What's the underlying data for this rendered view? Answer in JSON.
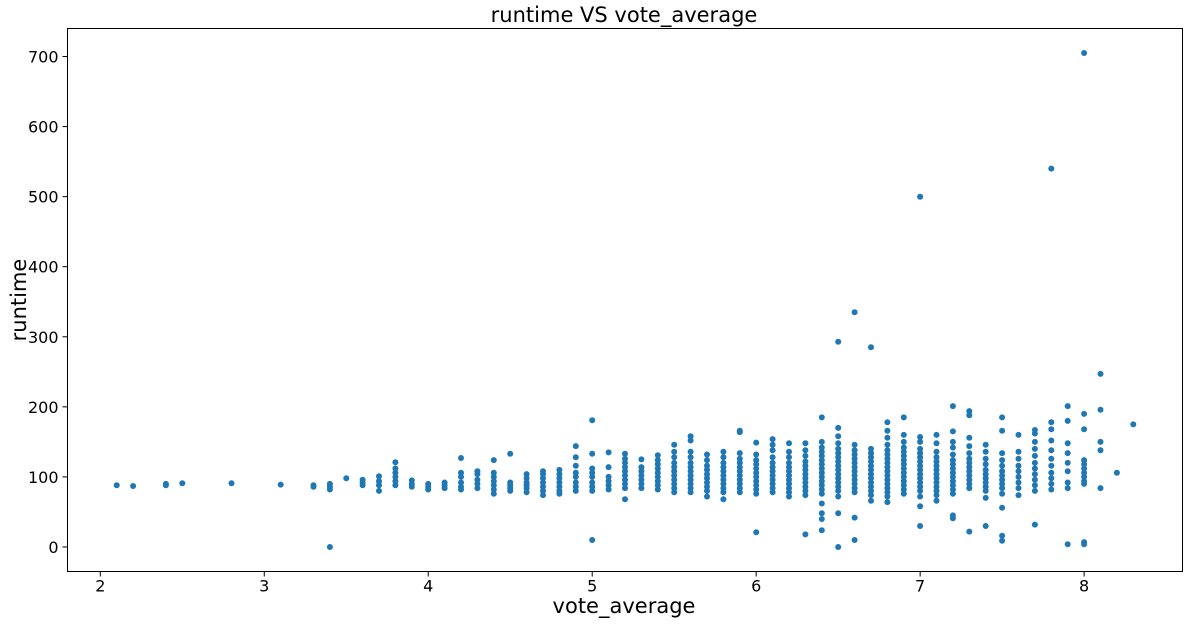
{
  "chart_data": {
    "type": "scatter",
    "title": "runtime VS vote_average",
    "xlabel": "vote_average",
    "ylabel": "runtime",
    "xlim": [
      1.8,
      8.6
    ],
    "ylim": [
      -35,
      740
    ],
    "xticks": [
      2,
      3,
      4,
      5,
      6,
      7,
      8
    ],
    "yticks": [
      0,
      100,
      200,
      300,
      400,
      500,
      600,
      700
    ],
    "grid": false,
    "point_color": "#1f77b4",
    "columns": [
      {
        "x": 2.1,
        "y": [
          88
        ]
      },
      {
        "x": 2.2,
        "y": [
          87
        ]
      },
      {
        "x": 2.4,
        "y": [
          88,
          90
        ]
      },
      {
        "x": 2.5,
        "y": [
          91
        ]
      },
      {
        "x": 2.8,
        "y": [
          91
        ]
      },
      {
        "x": 3.1,
        "y": [
          89
        ]
      },
      {
        "x": 3.3,
        "y": [
          86,
          88
        ]
      },
      {
        "x": 3.4,
        "y": [
          0,
          82,
          86,
          90
        ]
      },
      {
        "x": 3.5,
        "y": [
          98
        ]
      },
      {
        "x": 3.6,
        "y": [
          88,
          92,
          96
        ]
      },
      {
        "x": 3.7,
        "y": [
          80,
          88,
          94,
          101
        ]
      },
      {
        "x": 3.8,
        "y": [
          88,
          94,
          100,
          106,
          112,
          121
        ]
      },
      {
        "x": 3.9,
        "y": [
          86,
          90,
          95
        ]
      },
      {
        "x": 4.0,
        "y": [
          82,
          86,
          90
        ]
      },
      {
        "x": 4.1,
        "y": [
          84,
          88,
          92
        ]
      },
      {
        "x": 4.2,
        "y": [
          82,
          86,
          92,
          100,
          106,
          127
        ]
      },
      {
        "x": 4.3,
        "y": [
          84,
          90,
          96,
          104,
          108
        ]
      },
      {
        "x": 4.4,
        "y": [
          76,
          82,
          88,
          94,
          100,
          106,
          124
        ]
      },
      {
        "x": 4.5,
        "y": [
          80,
          84,
          88,
          92,
          133
        ]
      },
      {
        "x": 4.6,
        "y": [
          78,
          84,
          88,
          92,
          98,
          104
        ]
      },
      {
        "x": 4.7,
        "y": [
          74,
          80,
          86,
          92,
          98,
          104,
          108
        ]
      },
      {
        "x": 4.8,
        "y": [
          76,
          80,
          86,
          92,
          98,
          104,
          110
        ]
      },
      {
        "x": 4.9,
        "y": [
          80,
          86,
          92,
          100,
          106,
          116,
          128,
          144
        ]
      },
      {
        "x": 5.0,
        "y": [
          10,
          80,
          86,
          92,
          100,
          106,
          112,
          133,
          181
        ]
      },
      {
        "x": 5.1,
        "y": [
          82,
          88,
          94,
          100,
          114,
          135
        ]
      },
      {
        "x": 5.2,
        "y": [
          68,
          84,
          90,
          96,
          102,
          108,
          114,
          120,
          126,
          133
        ]
      },
      {
        "x": 5.3,
        "y": [
          84,
          90,
          96,
          102,
          108,
          114,
          125
        ]
      },
      {
        "x": 5.4,
        "y": [
          82,
          88,
          94,
          100,
          106,
          112,
          118,
          124,
          131
        ]
      },
      {
        "x": 5.5,
        "y": [
          78,
          84,
          90,
          96,
          102,
          108,
          114,
          120,
          128,
          136,
          146
        ]
      },
      {
        "x": 5.6,
        "y": [
          78,
          84,
          90,
          96,
          102,
          108,
          114,
          120,
          128,
          136,
          152,
          158
        ]
      },
      {
        "x": 5.7,
        "y": [
          72,
          80,
          86,
          92,
          98,
          104,
          110,
          116,
          124,
          132
        ]
      },
      {
        "x": 5.8,
        "y": [
          68,
          78,
          84,
          90,
          96,
          102,
          108,
          114,
          120,
          128,
          136
        ]
      },
      {
        "x": 5.9,
        "y": [
          78,
          84,
          90,
          96,
          102,
          108,
          114,
          120,
          126,
          134,
          164,
          166
        ]
      },
      {
        "x": 6.0,
        "y": [
          21,
          76,
          82,
          88,
          94,
          100,
          106,
          112,
          118,
          124,
          132,
          149
        ]
      },
      {
        "x": 6.1,
        "y": [
          78,
          84,
          90,
          96,
          102,
          108,
          114,
          120,
          128,
          138,
          146,
          154
        ]
      },
      {
        "x": 6.2,
        "y": [
          72,
          78,
          84,
          90,
          96,
          102,
          108,
          114,
          120,
          128,
          136,
          148
        ]
      },
      {
        "x": 6.3,
        "y": [
          18,
          74,
          80,
          86,
          92,
          98,
          104,
          110,
          116,
          122,
          130,
          138,
          148
        ]
      },
      {
        "x": 6.4,
        "y": [
          24,
          40,
          48,
          62,
          76,
          82,
          88,
          94,
          100,
          106,
          112,
          118,
          124,
          130,
          136,
          142,
          150,
          185
        ]
      },
      {
        "x": 6.5,
        "y": [
          0,
          48,
          72,
          80,
          86,
          92,
          98,
          104,
          110,
          116,
          122,
          128,
          134,
          140,
          148,
          158,
          170,
          293
        ]
      },
      {
        "x": 6.6,
        "y": [
          10,
          42,
          78,
          84,
          90,
          96,
          102,
          108,
          114,
          120,
          126,
          132,
          138,
          146,
          335
        ]
      },
      {
        "x": 6.7,
        "y": [
          66,
          74,
          80,
          86,
          92,
          98,
          104,
          110,
          116,
          122,
          128,
          134,
          140,
          285
        ]
      },
      {
        "x": 6.8,
        "y": [
          64,
          72,
          78,
          84,
          90,
          96,
          102,
          108,
          114,
          120,
          126,
          132,
          138,
          146,
          156,
          166,
          178
        ]
      },
      {
        "x": 6.9,
        "y": [
          76,
          82,
          88,
          94,
          100,
          106,
          112,
          118,
          124,
          130,
          136,
          142,
          150,
          160,
          185
        ]
      },
      {
        "x": 7.0,
        "y": [
          30,
          58,
          72,
          80,
          86,
          92,
          98,
          104,
          110,
          116,
          122,
          128,
          134,
          140,
          150,
          157,
          500
        ]
      },
      {
        "x": 7.1,
        "y": [
          66,
          74,
          80,
          86,
          92,
          98,
          104,
          110,
          116,
          122,
          128,
          136,
          148,
          160
        ]
      },
      {
        "x": 7.2,
        "y": [
          41,
          45,
          76,
          82,
          88,
          94,
          100,
          106,
          112,
          118,
          124,
          132,
          142,
          150,
          165,
          201
        ]
      },
      {
        "x": 7.3,
        "y": [
          22,
          84,
          90,
          96,
          102,
          108,
          114,
          120,
          126,
          134,
          144,
          156,
          188,
          194
        ]
      },
      {
        "x": 7.4,
        "y": [
          30,
          70,
          80,
          86,
          92,
          98,
          104,
          110,
          118,
          126,
          136,
          146
        ]
      },
      {
        "x": 7.5,
        "y": [
          9,
          16,
          56,
          76,
          84,
          90,
          96,
          102,
          108,
          116,
          124,
          134,
          166,
          185
        ]
      },
      {
        "x": 7.6,
        "y": [
          74,
          84,
          92,
          100,
          108,
          116,
          126,
          136,
          160
        ]
      },
      {
        "x": 7.7,
        "y": [
          32,
          80,
          88,
          96,
          104,
          112,
          120,
          130,
          140,
          150,
          162,
          167
        ]
      },
      {
        "x": 7.8,
        "y": [
          82,
          90,
          98,
          106,
          116,
          126,
          138,
          152,
          168,
          178,
          540
        ]
      },
      {
        "x": 7.9,
        "y": [
          4,
          84,
          92,
          108,
          120,
          134,
          148,
          180,
          201
        ]
      },
      {
        "x": 8.0,
        "y": [
          4,
          7,
          90,
          94,
          100,
          106,
          112,
          118,
          124,
          168,
          190,
          705
        ]
      },
      {
        "x": 8.1,
        "y": [
          84,
          138,
          150,
          196,
          247
        ]
      },
      {
        "x": 8.2,
        "y": [
          106
        ]
      },
      {
        "x": 8.3,
        "y": [
          175
        ]
      }
    ]
  }
}
